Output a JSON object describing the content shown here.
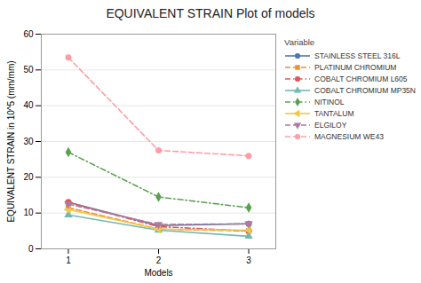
{
  "chart_data": {
    "type": "line",
    "title": "EQUIVALENT STRAIN  Plot of models",
    "xlabel": "Models",
    "ylabel": "EQUIVALENT STRAIN in 10^5 (mm/mm)",
    "x": [
      1,
      2,
      3
    ],
    "series": [
      {
        "name": "STAINLESS STEEL 316L",
        "values": [
          13.0,
          6.5,
          7.0
        ],
        "marker": "circle",
        "line_style": "solid"
      },
      {
        "name": "PLATINUM CHROMIUM",
        "values": [
          11.5,
          5.5,
          5.0
        ],
        "marker": "square",
        "line_style": "dashed"
      },
      {
        "name": "COBALT CHROMIUM L605",
        "values": [
          13.0,
          6.2,
          5.0
        ],
        "marker": "circle",
        "line_style": "dashdot"
      },
      {
        "name": "COBALT CHROMIUM MP35N",
        "values": [
          9.5,
          5.2,
          3.5
        ],
        "marker": "triangle-up",
        "line_style": "solid"
      },
      {
        "name": "NITINOL",
        "values": [
          27.0,
          14.5,
          11.5
        ],
        "marker": "diamond",
        "line_style": "dashdot"
      },
      {
        "name": "TANTALUM",
        "values": [
          11.0,
          5.5,
          5.2
        ],
        "marker": "triangle-left",
        "line_style": "solid"
      },
      {
        "name": "ELGILOY",
        "values": [
          12.5,
          6.8,
          7.0
        ],
        "marker": "triangle-down",
        "line_style": "dashed"
      },
      {
        "name": "MAGNESIUM WE43",
        "values": [
          53.5,
          27.5,
          26.0
        ],
        "marker": "circle",
        "line_style": "dashed"
      }
    ],
    "xlim": [
      0.7,
      3.3
    ],
    "xticks": [
      1,
      2,
      3
    ],
    "ylim": [
      0,
      60
    ],
    "yticks": [
      0,
      10,
      20,
      30,
      40,
      50,
      60
    ],
    "grid": "y",
    "legend": "right",
    "legend_title": "Variable"
  }
}
